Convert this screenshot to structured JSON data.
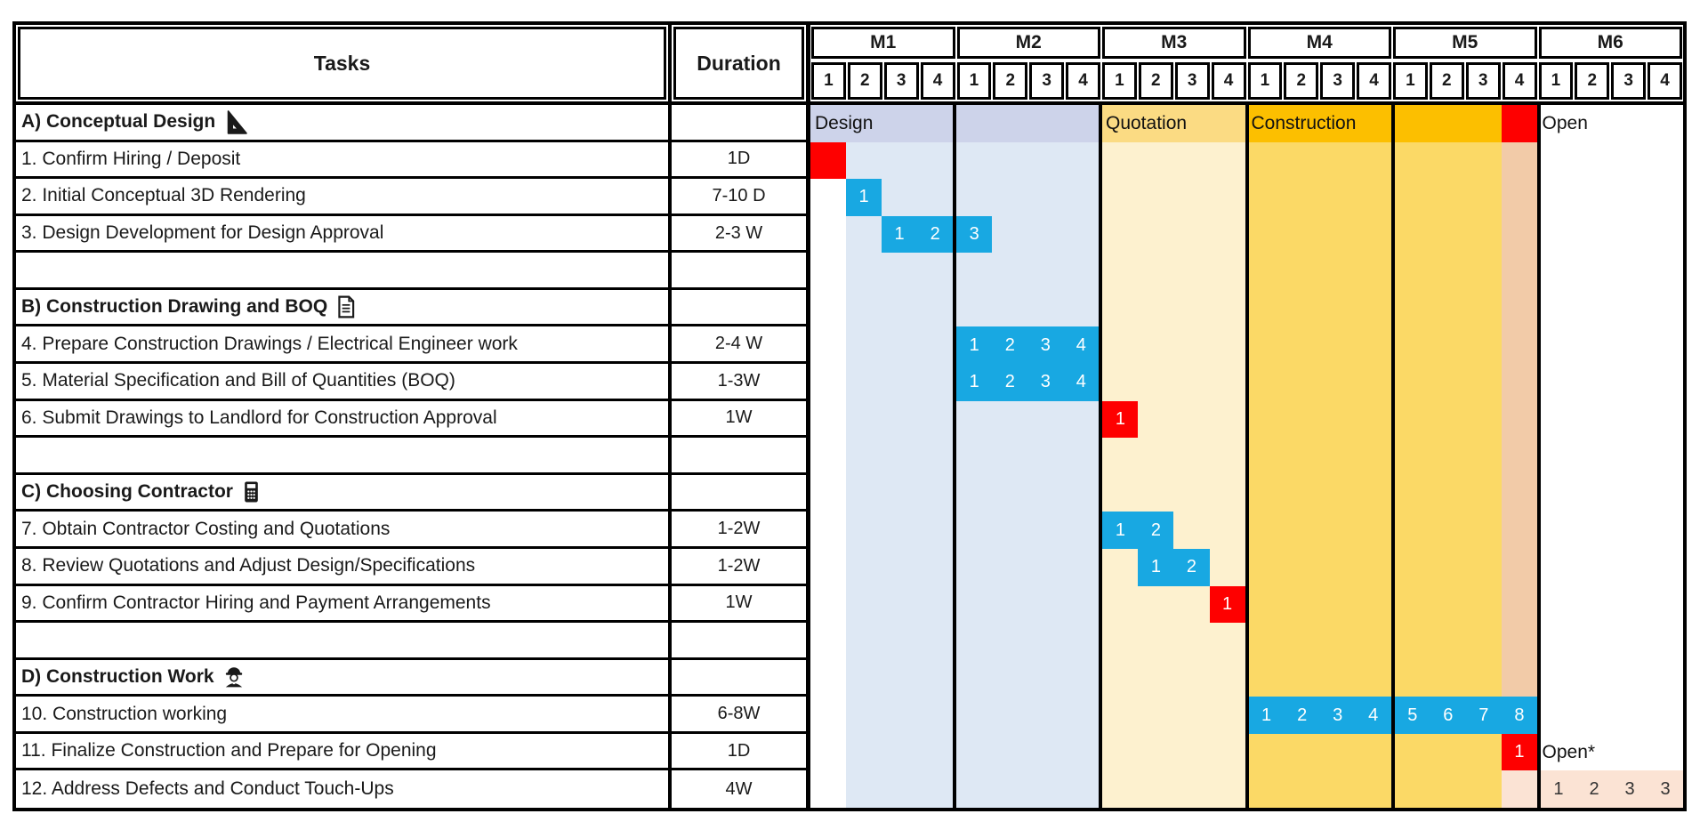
{
  "chart_data": {
    "type": "gantt",
    "header": {
      "tasks_label": "Tasks",
      "duration_label": "Duration",
      "months": [
        {
          "label": "M1",
          "weeks": [
            "1",
            "2",
            "3",
            "4"
          ]
        },
        {
          "label": "M2",
          "weeks": [
            "1",
            "2",
            "3",
            "4"
          ]
        },
        {
          "label": "M3",
          "weeks": [
            "1",
            "2",
            "3",
            "4"
          ]
        },
        {
          "label": "M4",
          "weeks": [
            "1",
            "2",
            "3",
            "4"
          ]
        },
        {
          "label": "M5",
          "weeks": [
            "1",
            "2",
            "3",
            "4"
          ]
        },
        {
          "label": "M6",
          "weeks": [
            "1",
            "2",
            "3",
            "4"
          ]
        }
      ]
    },
    "palette": {
      "blue": "#18A8E2",
      "red": "#FE0000",
      "pink": "#FBE3D4",
      "phase_design": "#CDD3EA",
      "phase_quotation": "#FBDB83",
      "phase_construction": "#FCBF00",
      "body_design": "#DEE8F4",
      "body_quotation": "#FDF1CF",
      "body_construction": "#FBD966",
      "body_peach": "#F2CBA8"
    },
    "body_bands": [
      {
        "start": 1,
        "span": 1,
        "color": "#FFFFFF"
      },
      {
        "start": 2,
        "span": 7,
        "color": "#DEE8F4"
      },
      {
        "start": 9,
        "span": 4,
        "color": "#FDF1CF"
      },
      {
        "start": 13,
        "span": 7,
        "color": "#FBD966"
      },
      {
        "start": 20,
        "span": 1,
        "color": "#F2CBA8"
      },
      {
        "start": 21,
        "span": 4,
        "color": "#FFFFFF"
      }
    ],
    "rows": [
      {
        "type": "section",
        "label": "A) Conceptual Design",
        "icon": "triangle-ruler-icon",
        "duration": "",
        "bands": [
          {
            "label": "Design",
            "start": 1,
            "span": 8,
            "color": "#CDD3EA"
          },
          {
            "label": "Quotation",
            "start": 9,
            "span": 4,
            "color": "#FBDB83"
          },
          {
            "label": "Construction",
            "start": 13,
            "span": 7,
            "color": "#FCBF00"
          },
          {
            "label": "",
            "start": 20,
            "span": 1,
            "color": "#FE0000"
          },
          {
            "label": "Open",
            "start": 21,
            "span": 4,
            "color": "#FFFFFF"
          }
        ]
      },
      {
        "type": "task",
        "label": "1. Confirm Hiring / Deposit",
        "duration": "1D",
        "bars": [
          {
            "color": "red",
            "start": 1,
            "span": 1,
            "labels": []
          }
        ]
      },
      {
        "type": "task",
        "label": "2. Initial Conceptual 3D Rendering",
        "duration": "7-10 D",
        "bars": [
          {
            "color": "blue",
            "start": 2,
            "span": 1,
            "labels": [
              "1"
            ]
          }
        ]
      },
      {
        "type": "task",
        "label": "3. Design Development for Design Approval",
        "duration": "2-3 W",
        "bars": [
          {
            "color": "blue",
            "start": 3,
            "span": 3,
            "labels": [
              "1",
              "2",
              "3"
            ]
          }
        ]
      },
      {
        "type": "blank",
        "label": "",
        "duration": ""
      },
      {
        "type": "section",
        "label": "B) Construction Drawing and BOQ",
        "icon": "document-icon",
        "duration": ""
      },
      {
        "type": "task",
        "label": "4. Prepare Construction Drawings / Electrical Engineer work",
        "duration": "2-4 W",
        "bars": [
          {
            "color": "blue",
            "start": 5,
            "span": 4,
            "labels": [
              "1",
              "2",
              "3",
              "4"
            ]
          }
        ]
      },
      {
        "type": "task",
        "label": "5. Material Specification and Bill of Quantities (BOQ)",
        "duration": "1-3W",
        "bars": [
          {
            "color": "blue",
            "start": 5,
            "span": 4,
            "labels": [
              "1",
              "2",
              "3",
              "4"
            ]
          }
        ]
      },
      {
        "type": "task",
        "label": "6. Submit Drawings to Landlord for Construction Approval",
        "duration": "1W",
        "bars": [
          {
            "color": "red",
            "start": 9,
            "span": 1,
            "labels": [
              "1"
            ]
          }
        ]
      },
      {
        "type": "blank",
        "label": "",
        "duration": ""
      },
      {
        "type": "section",
        "label": "C) Choosing Contractor",
        "icon": "calculator-icon",
        "duration": ""
      },
      {
        "type": "task",
        "label": "7. Obtain Contractor Costing and Quotations",
        "duration": "1-2W",
        "bars": [
          {
            "color": "blue",
            "start": 9,
            "span": 2,
            "labels": [
              "1",
              "2"
            ]
          }
        ]
      },
      {
        "type": "task",
        "label": "8. Review Quotations and Adjust Design/Specifications",
        "duration": "1-2W",
        "bars": [
          {
            "color": "blue",
            "start": 10,
            "span": 2,
            "labels": [
              "1",
              "2"
            ]
          }
        ]
      },
      {
        "type": "task",
        "label": "9. Confirm Contractor Hiring and Payment Arrangements",
        "duration": "1W",
        "bars": [
          {
            "color": "red",
            "start": 12,
            "span": 1,
            "labels": [
              "1"
            ]
          }
        ]
      },
      {
        "type": "blank",
        "label": "",
        "duration": ""
      },
      {
        "type": "section",
        "label": "D) Construction Work",
        "icon": "worker-icon",
        "duration": ""
      },
      {
        "type": "task",
        "label": "10. Construction working",
        "duration": "6-8W",
        "bars": [
          {
            "color": "blue",
            "start": 13,
            "span": 8,
            "labels": [
              "1",
              "2",
              "3",
              "4",
              "5",
              "6",
              "7",
              "8"
            ]
          }
        ]
      },
      {
        "type": "task",
        "label": "11. Finalize Construction and Prepare for Opening",
        "duration": "1D",
        "bars": [
          {
            "color": "red",
            "start": 20,
            "span": 1,
            "labels": [
              "1"
            ]
          }
        ],
        "note": {
          "text": "Open*",
          "start": 21
        }
      },
      {
        "type": "task",
        "label": "12. Address Defects and Conduct Touch-Ups",
        "duration": "4W",
        "bars": [
          {
            "color": "pink",
            "start": 20,
            "span": 5,
            "labels": [
              "",
              "1",
              "2",
              "3",
              "3"
            ]
          }
        ]
      }
    ]
  }
}
